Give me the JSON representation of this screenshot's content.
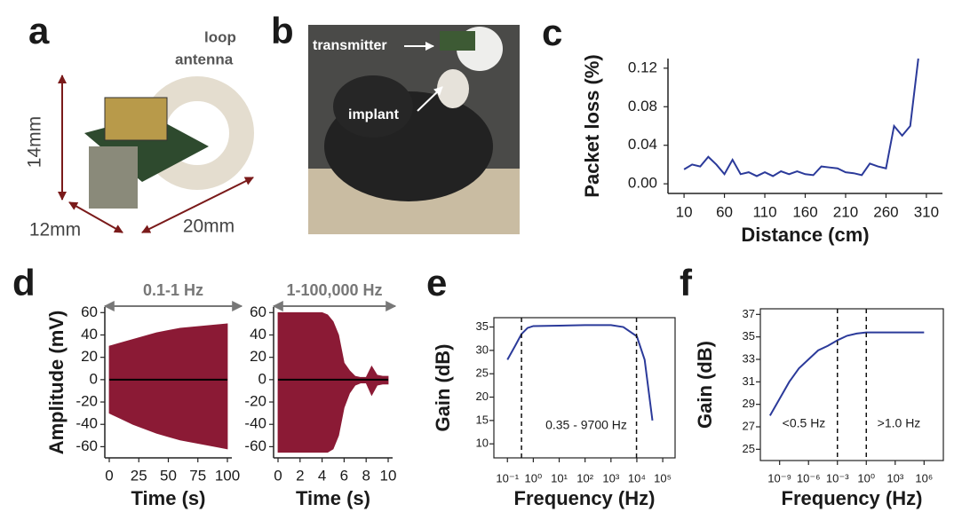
{
  "panel_labels": [
    "a",
    "b",
    "c",
    "d",
    "e",
    "f"
  ],
  "photo_a": {
    "antenna_label": [
      "loop",
      "antenna"
    ],
    "dimensions": [
      "14mm",
      "12mm",
      "20mm"
    ]
  },
  "photo_b": {
    "labels": [
      "transmitter",
      "implant"
    ]
  },
  "chart_data": [
    {
      "type": "line",
      "xlabel": "Distance (cm)",
      "ylabel": "Packet loss (%)",
      "x": [
        10,
        20,
        30,
        40,
        50,
        60,
        70,
        80,
        90,
        100,
        110,
        120,
        130,
        140,
        150,
        160,
        170,
        180,
        190,
        200,
        210,
        220,
        230,
        240,
        250,
        260,
        270,
        280,
        290,
        300
      ],
      "series": [
        {
          "color": "#2b3a9a",
          "values": [
            0.015,
            0.02,
            0.018,
            0.028,
            0.02,
            0.01,
            0.025,
            0.01,
            0.012,
            0.008,
            0.012,
            0.008,
            0.013,
            0.01,
            0.013,
            0.01,
            0.009,
            0.018,
            0.017,
            0.016,
            0.012,
            0.011,
            0.009,
            0.021,
            0.018,
            0.016,
            0.06,
            0.05,
            0.06,
            0.13
          ]
        }
      ],
      "xlim": [
        0,
        320
      ],
      "xticks": [
        10,
        60,
        110,
        160,
        210,
        260,
        310
      ],
      "ylim": [
        -0.01,
        0.13
      ],
      "yticks": [
        {
          "value": 0,
          "label": "0.00"
        },
        {
          "value": 0.04,
          "label": "0.04"
        },
        {
          "value": 0.08,
          "label": "0.08"
        },
        {
          "value": 0.12,
          "label": "0.12"
        }
      ]
    },
    {
      "type": "band",
      "xlabel": "Time (s)",
      "ylabel": "Amplitude (mV)",
      "annotation": "0.1-1 Hz",
      "x": [
        0,
        10,
        20,
        30,
        40,
        50,
        60,
        70,
        80,
        90,
        100
      ],
      "series": [
        {
          "color": "#8b1a35",
          "values": [
            30,
            33,
            36,
            39,
            42,
            44,
            46,
            47,
            48,
            49,
            50
          ]
        },
        {
          "color": "#8b1a35",
          "values": [
            -30,
            -35,
            -40,
            -44,
            -48,
            -51,
            -54,
            -56,
            -58,
            -60,
            -62
          ]
        }
      ],
      "xlim": [
        0,
        100
      ],
      "xticks": [
        0,
        25,
        50,
        75,
        100
      ],
      "ylim": [
        -70,
        65
      ],
      "yticks": [
        -60,
        -40,
        -20,
        0,
        20,
        40,
        60
      ]
    },
    {
      "type": "band",
      "xlabel": "Time (s)",
      "annotation": "1-100,000 Hz",
      "x": [
        0,
        0.5,
        1,
        1.5,
        2,
        2.5,
        3,
        3.5,
        4,
        4.5,
        5,
        5.5,
        6,
        6.5,
        7,
        7.5,
        8,
        8.5,
        9,
        9.5,
        10
      ],
      "series": [
        {
          "color": "#8b1a35",
          "values": [
            60,
            60,
            60,
            60,
            60,
            60,
            60,
            60,
            60,
            58,
            52,
            40,
            15,
            8,
            3,
            2,
            2,
            12,
            4,
            3,
            3
          ]
        },
        {
          "color": "#8b1a35",
          "values": [
            -65,
            -65,
            -65,
            -65,
            -65,
            -65,
            -65,
            -65,
            -65,
            -65,
            -62,
            -50,
            -25,
            -12,
            -5,
            -3,
            -3,
            -14,
            -5,
            -4,
            -4
          ]
        }
      ],
      "xlim": [
        0,
        10
      ],
      "xticks": [
        0,
        2,
        4,
        6,
        8,
        10
      ],
      "ylim": [
        -70,
        65
      ],
      "yticks": [
        -60,
        -40,
        -20,
        0,
        20,
        40,
        60
      ]
    },
    {
      "type": "line",
      "log_x": true,
      "xlabel": "Frequency (Hz)",
      "ylabel": "Gain (dB)",
      "cutoffs": [
        0.35,
        9700
      ],
      "annotations": [
        "0.35 - 9700 Hz"
      ],
      "x": [
        0.1,
        0.2,
        0.35,
        0.6,
        1,
        10,
        100,
        1000,
        3000,
        10000,
        20000,
        40000
      ],
      "series": [
        {
          "color": "#2b3a9a",
          "values": [
            28,
            31,
            33.5,
            34.8,
            35.2,
            35.3,
            35.4,
            35.4,
            35,
            33,
            28,
            15
          ]
        }
      ],
      "xlim": [
        0.03,
        300000
      ],
      "xticks": [
        {
          "value": 0.1,
          "label": "10⁻¹"
        },
        {
          "value": 1,
          "label": "10⁰"
        },
        {
          "value": 10,
          "label": "10¹"
        },
        {
          "value": 100,
          "label": "10²"
        },
        {
          "value": 1000,
          "label": "10³"
        },
        {
          "value": 10000,
          "label": "10⁴"
        },
        {
          "value": 100000,
          "label": "10⁵"
        }
      ],
      "ylim": [
        7,
        37
      ],
      "yticks": [
        10,
        15,
        20,
        25,
        30,
        35
      ]
    },
    {
      "type": "line",
      "log_x": true,
      "xlabel": "Frequency (Hz)",
      "ylabel": "Gain (dB)",
      "cutoffs": [
        0.001,
        1
      ],
      "annotations": [
        "<0.5 Hz",
        ">1.0 Hz"
      ],
      "x": [
        1e-10,
        1e-09,
        1e-08,
        1e-07,
        1e-06,
        1e-05,
        0.0001,
        0.001,
        0.01,
        0.1,
        1,
        1000,
        1000000
      ],
      "series": [
        {
          "color": "#2b3a9a",
          "values": [
            28,
            29.5,
            31,
            32.2,
            33,
            33.8,
            34.2,
            34.7,
            35.1,
            35.3,
            35.4,
            35.4,
            35.4
          ]
        }
      ],
      "xlim": [
        1e-11,
        100000000.0
      ],
      "xticks": [
        {
          "value": 1e-09,
          "label": "10⁻⁹"
        },
        {
          "value": 1e-06,
          "label": "10⁻⁶"
        },
        {
          "value": 0.001,
          "label": "10⁻³"
        },
        {
          "value": 1,
          "label": "10⁰"
        },
        {
          "value": 1000,
          "label": "10³"
        },
        {
          "value": 1000000,
          "label": "10⁶"
        }
      ],
      "ylim": [
        24,
        37.5
      ],
      "yticks": [
        25,
        27,
        29,
        31,
        33,
        35,
        37
      ]
    }
  ]
}
